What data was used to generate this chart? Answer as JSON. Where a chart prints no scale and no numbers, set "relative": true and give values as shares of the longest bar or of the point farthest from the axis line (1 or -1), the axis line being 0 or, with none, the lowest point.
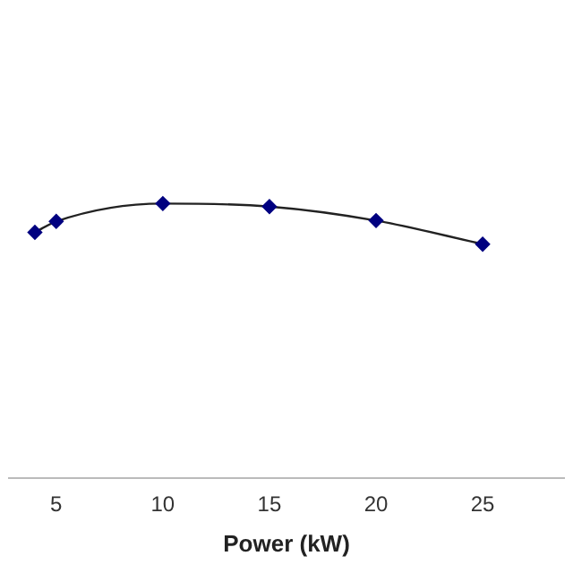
{
  "chart_data": {
    "type": "line",
    "xlabel": "Power (kW)",
    "x": [
      4,
      5,
      10,
      15,
      20,
      25
    ],
    "relative": true,
    "series": [
      {
        "color": "#000080",
        "values": [
          0.895,
          0.935,
          1,
          0.989,
          0.938,
          0.852
        ]
      }
    ],
    "xlim": [
      2.8,
      28.8
    ],
    "xticks": [
      5,
      10,
      15,
      20,
      25
    ],
    "marker": "diamond",
    "line_style": "solid",
    "grid": false,
    "legend": false
  }
}
